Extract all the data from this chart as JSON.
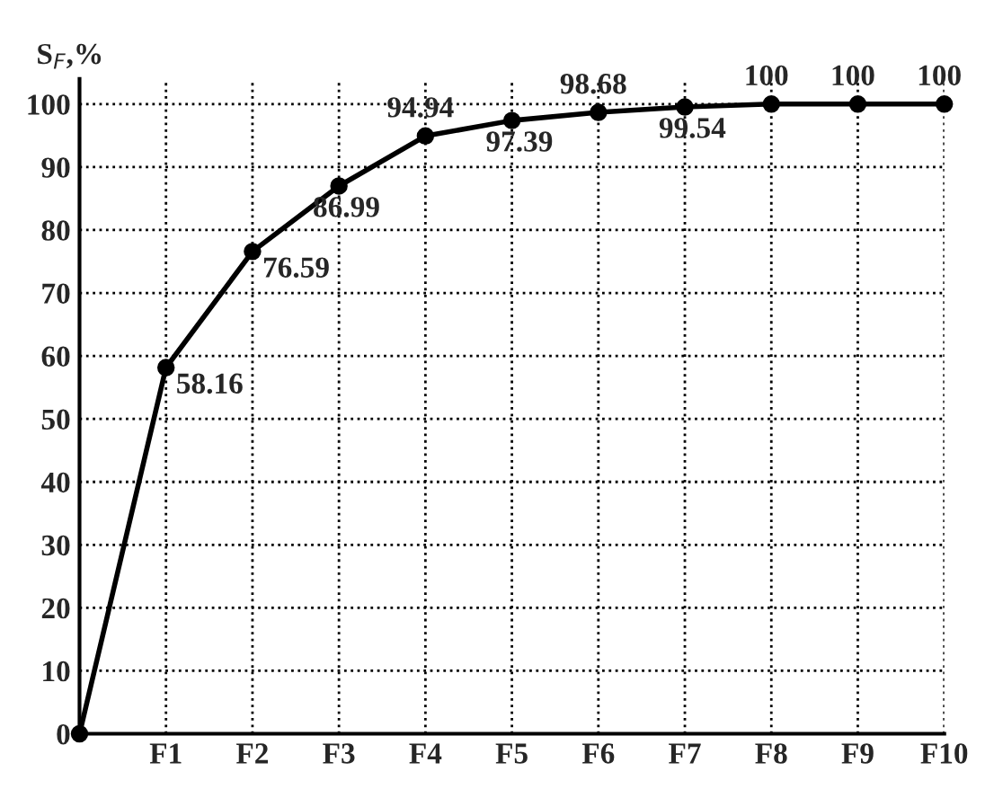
{
  "chart_data": {
    "type": "line",
    "ylabel": "S$_{F}$,%",
    "categories": [
      null,
      "F1",
      "F2",
      "F3",
      "F4",
      "F5",
      "F6",
      "F7",
      "F8",
      "F9",
      "F10"
    ],
    "series": [
      {
        "color": "#000000",
        "values": [
          0,
          58.16,
          76.59,
          86.99,
          94.94,
          97.39,
          98.68,
          99.54,
          100,
          100,
          100
        ]
      }
    ],
    "value_labels": [
      null,
      "58.16",
      "76.59",
      "86.99",
      "94.94",
      "97.39",
      "98.68",
      "99.54",
      "100",
      "100",
      "100"
    ],
    "ylim": [
      0,
      104
    ],
    "yticks": [
      0,
      10,
      20,
      30,
      40,
      50,
      60,
      70,
      80,
      90,
      100
    ],
    "grid": true,
    "marker": "circle",
    "line_style": "solid",
    "legend": false
  }
}
